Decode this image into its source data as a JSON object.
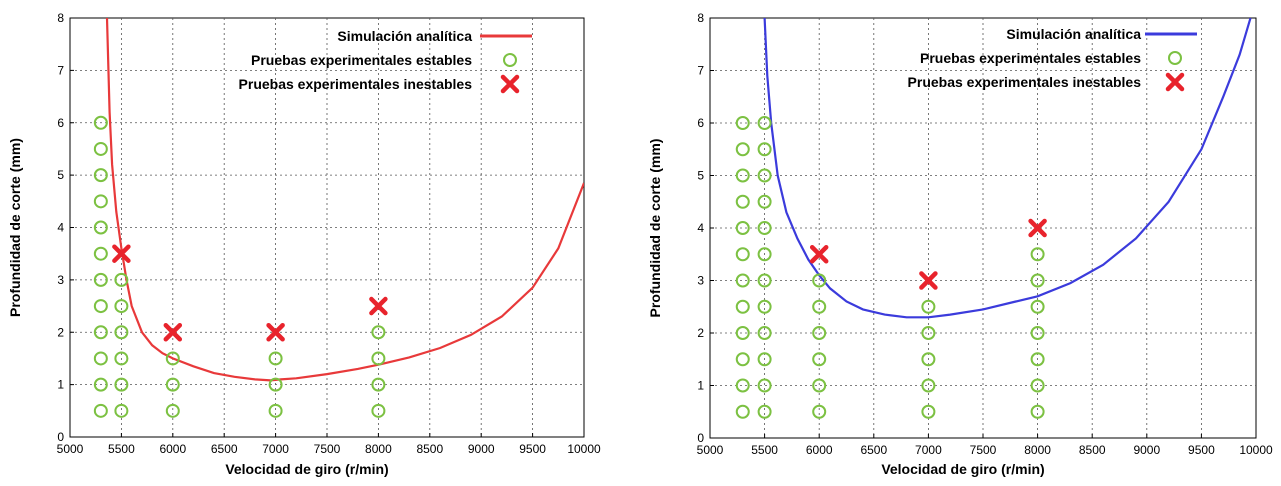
{
  "chart_data": [
    {
      "type": "scatter",
      "xlabel": "Velocidad de giro (r/min)",
      "ylabel": "Profundidad de corte (mm)",
      "xlim": [
        5000,
        10000
      ],
      "ylim": [
        0,
        8
      ],
      "x_ticks": [
        "5000",
        "5500",
        "6000",
        "6500",
        "7000",
        "7500",
        "8000",
        "8500",
        "9000",
        "9500",
        "10000"
      ],
      "y_ticks": [
        "0",
        "1",
        "2",
        "3",
        "4",
        "5",
        "6",
        "7",
        "8"
      ],
      "grid": true,
      "legend_position": "top-right",
      "colors": {
        "curve": "#e8393a",
        "stable": "#7cc142",
        "unstable": "#e8232c"
      },
      "series": [
        {
          "name": "Simulación analítica",
          "kind": "line",
          "points": [
            [
              5360,
              8.0
            ],
            [
              5385,
              6.2
            ],
            [
              5410,
              5.2
            ],
            [
              5450,
              4.3
            ],
            [
              5500,
              3.6
            ],
            [
              5550,
              3.0
            ],
            [
              5600,
              2.5
            ],
            [
              5700,
              2.0
            ],
            [
              5800,
              1.75
            ],
            [
              5900,
              1.6
            ],
            [
              6000,
              1.5
            ],
            [
              6200,
              1.35
            ],
            [
              6400,
              1.22
            ],
            [
              6600,
              1.15
            ],
            [
              6800,
              1.1
            ],
            [
              6950,
              1.08
            ],
            [
              7050,
              1.1
            ],
            [
              7200,
              1.12
            ],
            [
              7500,
              1.2
            ],
            [
              7800,
              1.3
            ],
            [
              8000,
              1.38
            ],
            [
              8300,
              1.52
            ],
            [
              8600,
              1.7
            ],
            [
              8900,
              1.95
            ],
            [
              9200,
              2.3
            ],
            [
              9500,
              2.85
            ],
            [
              9750,
              3.6
            ],
            [
              10000,
              4.85
            ]
          ]
        },
        {
          "name": "Pruebas experimentales estables",
          "kind": "marker-circle",
          "points": [
            [
              5300,
              0.5
            ],
            [
              5300,
              1.0
            ],
            [
              5300,
              1.5
            ],
            [
              5300,
              2.0
            ],
            [
              5300,
              2.5
            ],
            [
              5300,
              3.0
            ],
            [
              5300,
              3.5
            ],
            [
              5300,
              4.0
            ],
            [
              5300,
              4.5
            ],
            [
              5300,
              5.0
            ],
            [
              5300,
              5.5
            ],
            [
              5300,
              6.0
            ],
            [
              5500,
              0.5
            ],
            [
              5500,
              1.0
            ],
            [
              5500,
              1.5
            ],
            [
              5500,
              2.0
            ],
            [
              5500,
              2.5
            ],
            [
              5500,
              3.0
            ],
            [
              6000,
              0.5
            ],
            [
              6000,
              1.0
            ],
            [
              6000,
              1.5
            ],
            [
              7000,
              0.5
            ],
            [
              7000,
              1.0
            ],
            [
              7000,
              1.5
            ],
            [
              8000,
              0.5
            ],
            [
              8000,
              1.0
            ],
            [
              8000,
              1.5
            ],
            [
              8000,
              2.0
            ]
          ]
        },
        {
          "name": "Pruebas experimentales inestables",
          "kind": "marker-x",
          "points": [
            [
              5500,
              3.5
            ],
            [
              6000,
              2.0
            ],
            [
              7000,
              2.0
            ],
            [
              8000,
              2.5
            ]
          ]
        }
      ]
    },
    {
      "type": "scatter",
      "xlabel": "Velocidad de giro (r/min)",
      "ylabel": "Profundidad de corte (mm)",
      "xlim": [
        5000,
        10000
      ],
      "ylim": [
        0,
        8
      ],
      "x_ticks": [
        "5000",
        "5500",
        "6000",
        "6500",
        "7000",
        "7500",
        "8000",
        "8500",
        "9000",
        "9500",
        "10000"
      ],
      "y_ticks": [
        "0",
        "1",
        "2",
        "3",
        "4",
        "5",
        "6",
        "7",
        "8"
      ],
      "grid": true,
      "legend_position": "top-right",
      "colors": {
        "curve": "#3b3bdc",
        "stable": "#7cc142",
        "unstable": "#e8232c"
      },
      "series": [
        {
          "name": "Simulación analítica",
          "kind": "line",
          "points": [
            [
              5500,
              8.0
            ],
            [
              5525,
              6.9
            ],
            [
              5560,
              6.0
            ],
            [
              5620,
              5.0
            ],
            [
              5700,
              4.3
            ],
            [
              5800,
              3.8
            ],
            [
              5900,
              3.4
            ],
            [
              6000,
              3.1
            ],
            [
              6100,
              2.85
            ],
            [
              6250,
              2.6
            ],
            [
              6400,
              2.45
            ],
            [
              6600,
              2.35
            ],
            [
              6800,
              2.3
            ],
            [
              7000,
              2.3
            ],
            [
              7200,
              2.35
            ],
            [
              7500,
              2.45
            ],
            [
              7800,
              2.6
            ],
            [
              8000,
              2.7
            ],
            [
              8300,
              2.95
            ],
            [
              8600,
              3.3
            ],
            [
              8900,
              3.8
            ],
            [
              9200,
              4.5
            ],
            [
              9500,
              5.5
            ],
            [
              9700,
              6.5
            ],
            [
              9850,
              7.3
            ],
            [
              9950,
              8.0
            ]
          ]
        },
        {
          "name": "Pruebas experimentales estables",
          "kind": "marker-circle",
          "points": [
            [
              5300,
              0.5
            ],
            [
              5300,
              1.0
            ],
            [
              5300,
              1.5
            ],
            [
              5300,
              2.0
            ],
            [
              5300,
              2.5
            ],
            [
              5300,
              3.0
            ],
            [
              5300,
              3.5
            ],
            [
              5300,
              4.0
            ],
            [
              5300,
              4.5
            ],
            [
              5300,
              5.0
            ],
            [
              5300,
              5.5
            ],
            [
              5300,
              6.0
            ],
            [
              5500,
              0.5
            ],
            [
              5500,
              1.0
            ],
            [
              5500,
              1.5
            ],
            [
              5500,
              2.0
            ],
            [
              5500,
              2.5
            ],
            [
              5500,
              3.0
            ],
            [
              5500,
              3.5
            ],
            [
              5500,
              4.0
            ],
            [
              5500,
              4.5
            ],
            [
              5500,
              5.0
            ],
            [
              5500,
              5.5
            ],
            [
              5500,
              6.0
            ],
            [
              6000,
              0.5
            ],
            [
              6000,
              1.0
            ],
            [
              6000,
              1.5
            ],
            [
              6000,
              2.0
            ],
            [
              6000,
              2.5
            ],
            [
              6000,
              3.0
            ],
            [
              7000,
              0.5
            ],
            [
              7000,
              1.0
            ],
            [
              7000,
              1.5
            ],
            [
              7000,
              2.0
            ],
            [
              7000,
              2.5
            ],
            [
              8000,
              0.5
            ],
            [
              8000,
              1.0
            ],
            [
              8000,
              1.5
            ],
            [
              8000,
              2.0
            ],
            [
              8000,
              2.5
            ],
            [
              8000,
              3.0
            ],
            [
              8000,
              3.5
            ]
          ]
        },
        {
          "name": "Pruebas experimentales inestables",
          "kind": "marker-x",
          "points": [
            [
              6000,
              3.5
            ],
            [
              7000,
              3.0
            ],
            [
              8000,
              4.0
            ]
          ]
        }
      ]
    }
  ]
}
